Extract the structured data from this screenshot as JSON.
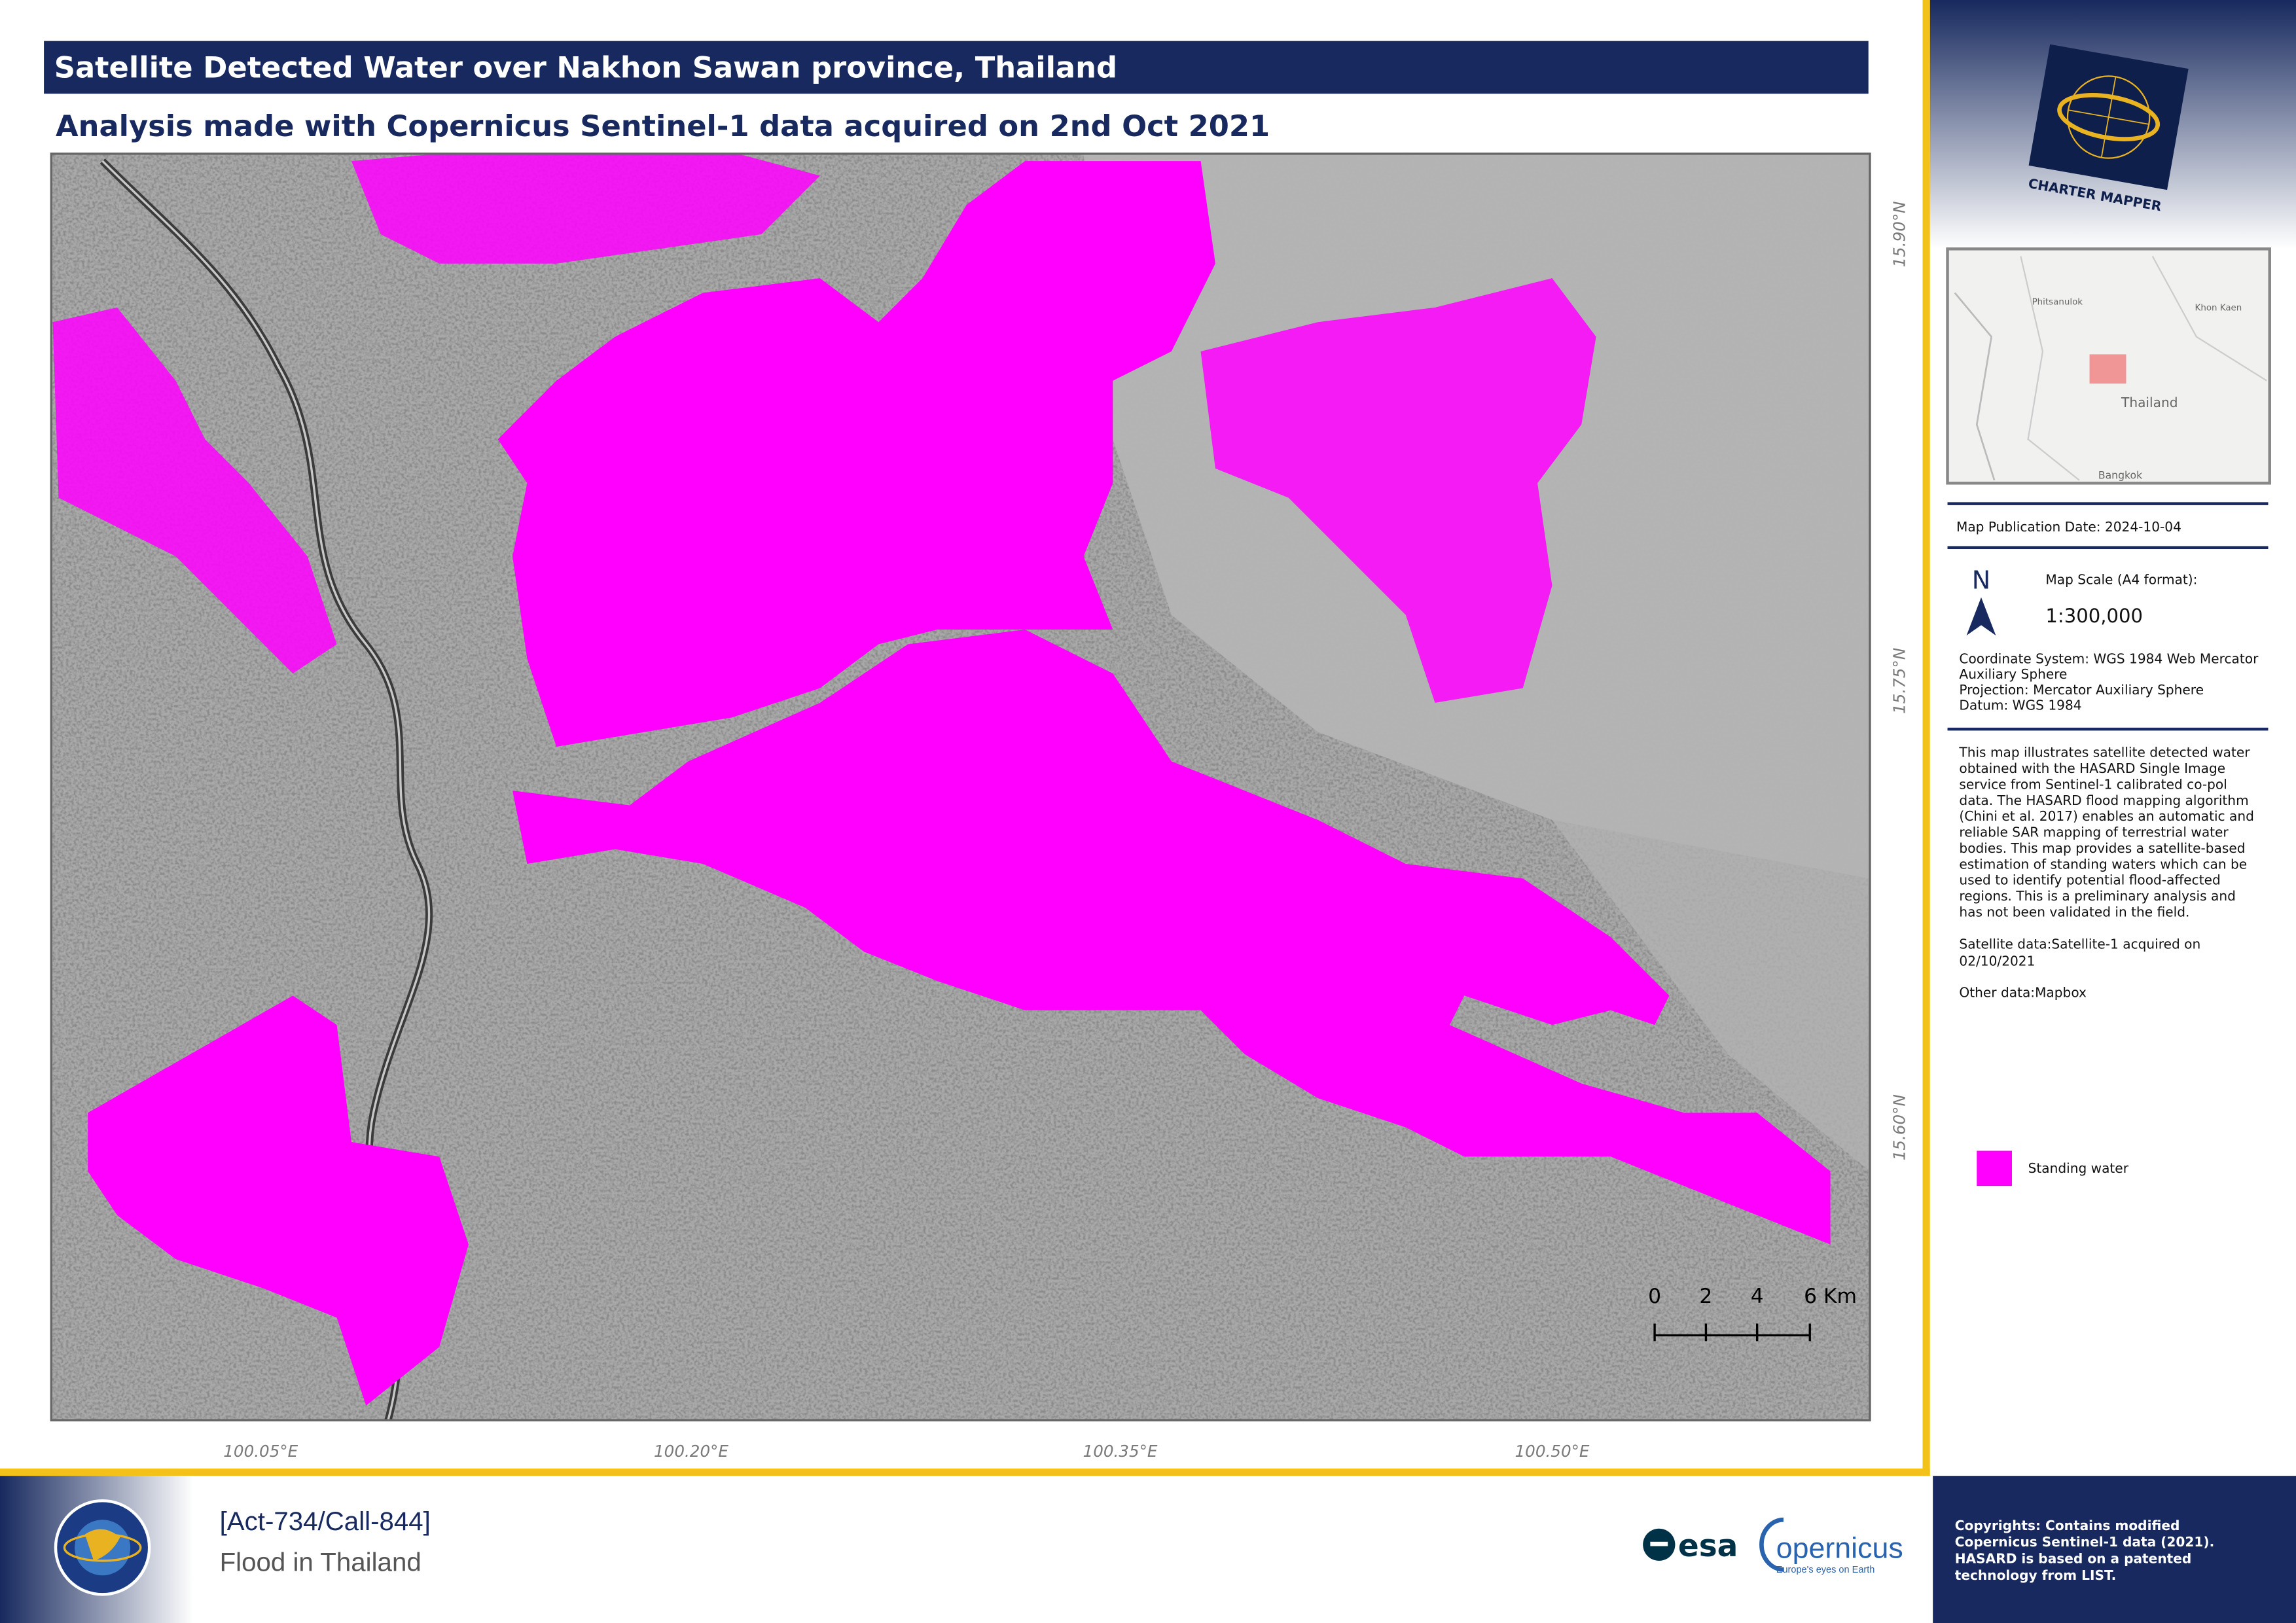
{
  "header": {
    "title": "Satellite Detected Water over Nakhon Sawan province, Thailand",
    "subtitle": "Analysis made with Copernicus Sentinel-1 data acquired on 2nd Oct 2021"
  },
  "map": {
    "longitude_labels": [
      "100.05°E",
      "100.20°E",
      "100.35°E",
      "100.50°E"
    ],
    "latitude_labels": [
      "15.90°N",
      "15.75°N",
      "15.60°N"
    ],
    "scale_bar": {
      "labels": [
        "0",
        "2",
        "4",
        "6 Km"
      ]
    }
  },
  "sidebar": {
    "logo_text": "CHARTER MAPPER",
    "inset_map": {
      "labels": [
        "Phitsanulok",
        "Khon Kaen",
        "Thailand",
        "Bangkok"
      ]
    },
    "publication_date": "Map Publication Date: 2024-10-04",
    "north": "N",
    "scale_title": "Map Scale (A4 format):",
    "scale": "1:300,000",
    "coordinate_info": [
      "Coordinate System: WGS 1984 Web Mercator",
      "Auxiliary Sphere",
      "Projection: Mercator Auxiliary Sphere",
      "Datum: WGS 1984"
    ],
    "description": [
      "This map illustrates satellite detected water",
      "obtained with the HASARD Single Image",
      "service from Sentinel-1 calibrated co-pol",
      "data. The HASARD flood mapping algorithm",
      "(Chini et al. 2017) enables an automatic and",
      "reliable SAR mapping of terrestrial water",
      "bodies. This map provides a satellite-based",
      "estimation of standing waters which can be",
      "used to identify potential flood-affected",
      "regions. This is a preliminary analysis and",
      "has not been validated in the field."
    ],
    "satellite_data": [
      "Satellite data:Satellite-1 acquired on",
      "02/10/2021"
    ],
    "other_data": "Other data:Mapbox",
    "legend": {
      "label": "Standing water",
      "color": "#ff00ff"
    }
  },
  "footer": {
    "activation": "[Act-734/Call-844]",
    "event": "Flood in Thailand",
    "logos": [
      "esa",
      "opernicus",
      "Europe's eyes on Earth"
    ],
    "copyright": [
      "Copyrights: Contains modified",
      "Copernicus Sentinel-1 data (2021).",
      "HASARD is based on a patented",
      "technology from LIST."
    ]
  }
}
